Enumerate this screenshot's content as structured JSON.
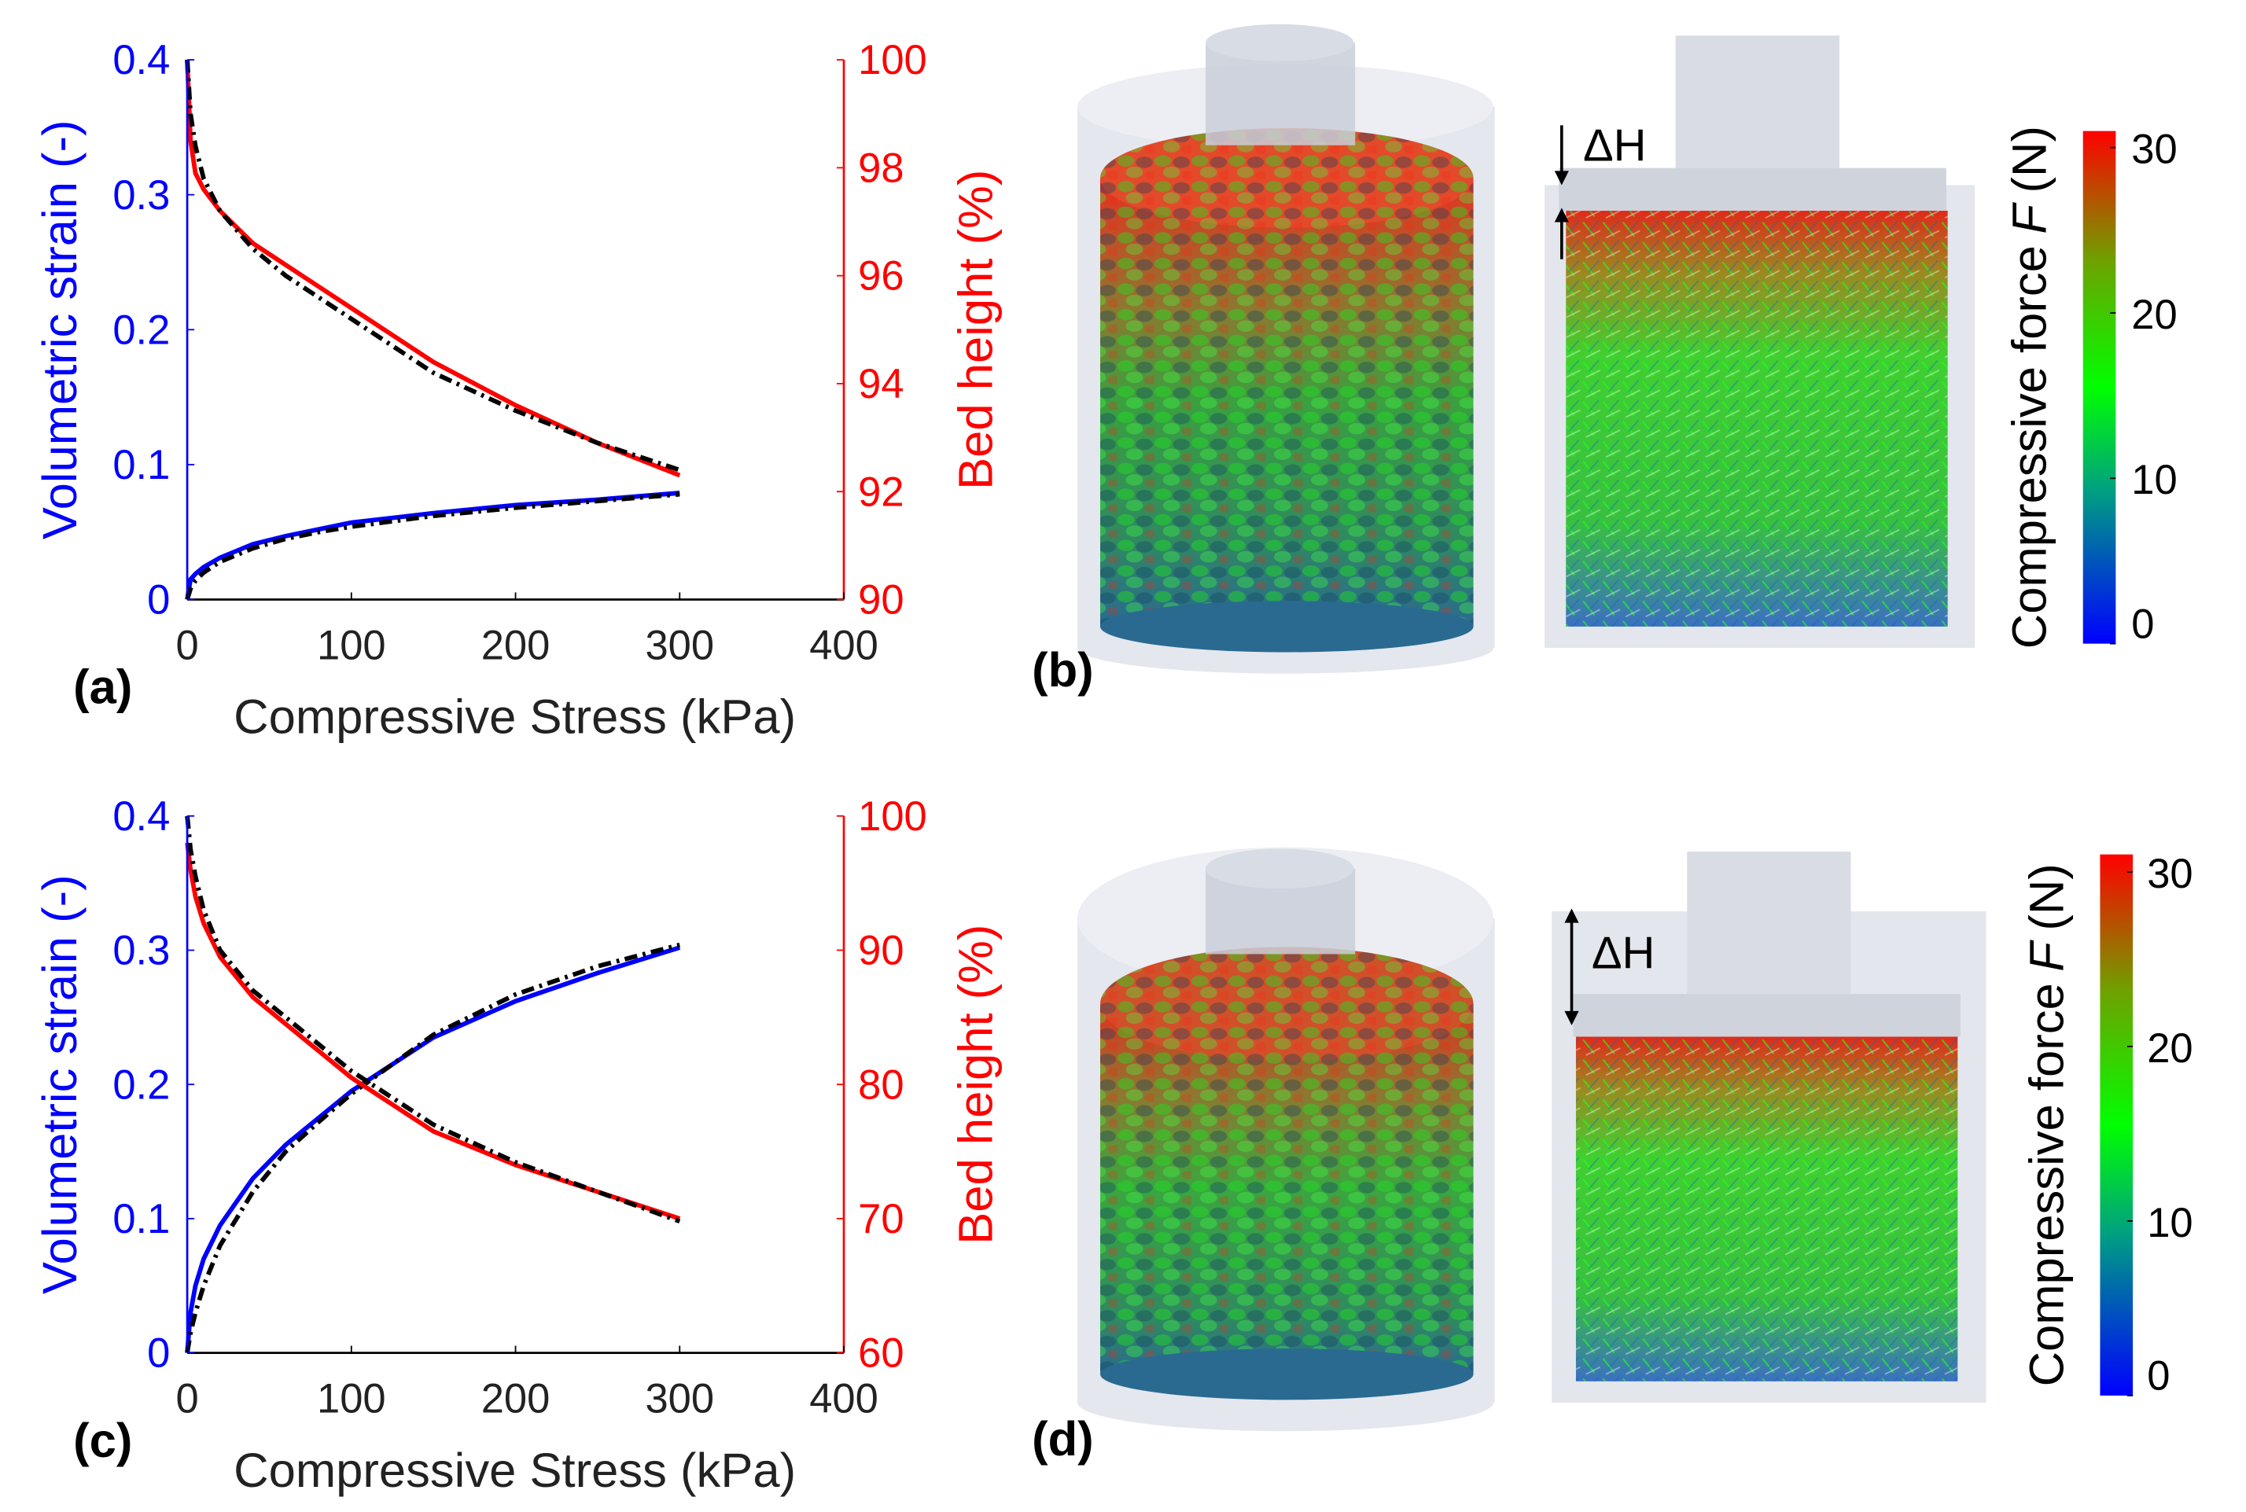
{
  "chart_data": [
    {
      "type": "line",
      "panel_label": "(a)",
      "xlabel": "Compressive Stress (kPa)",
      "ylabel": "Volumetric strain (-)",
      "y2label": "Bed height (%)",
      "ylabel_color": "#0000ff",
      "y2label_color": "#ff0000",
      "x": [
        0,
        2,
        5,
        10,
        20,
        40,
        60,
        80,
        100,
        150,
        200,
        250,
        300
      ],
      "xlim": [
        0,
        400
      ],
      "xticks": [
        0,
        100,
        200,
        300,
        400
      ],
      "ylim": [
        0,
        0.4
      ],
      "yticks": [
        0,
        0.1,
        0.2,
        0.3,
        0.4
      ],
      "y2lim": [
        90,
        100
      ],
      "y2ticks": [
        90,
        92,
        94,
        96,
        98,
        100
      ],
      "series": [
        {
          "color": "#0000ff",
          "dash": "solid",
          "axis": "y",
          "values": [
            0,
            0.015,
            0.019,
            0.024,
            0.031,
            0.041,
            0.047,
            0.052,
            0.057,
            0.064,
            0.07,
            0.074,
            0.079
          ]
        },
        {
          "color": "#000000",
          "dash": "dashdot",
          "axis": "y",
          "values": [
            0,
            0.008,
            0.014,
            0.02,
            0.028,
            0.038,
            0.045,
            0.05,
            0.054,
            0.062,
            0.068,
            0.073,
            0.078
          ]
        },
        {
          "color": "#ff0000",
          "dash": "solid",
          "axis": "y2",
          "values": [
            100,
            98.5,
            97.9,
            97.6,
            97.2,
            96.6,
            96.2,
            95.8,
            95.4,
            94.4,
            93.6,
            92.9,
            92.3
          ]
        },
        {
          "color": "#000000",
          "dash": "dashdot",
          "axis": "y2",
          "values": [
            100,
            99,
            98.4,
            97.8,
            97.2,
            96.5,
            96,
            95.6,
            95.2,
            94.2,
            93.5,
            92.9,
            92.4
          ]
        }
      ]
    },
    {
      "type": "line",
      "panel_label": "(c)",
      "xlabel": "Compressive Stress (kPa)",
      "ylabel": "Volumetric strain (-)",
      "y2label": "Bed height (%)",
      "ylabel_color": "#0000ff",
      "y2label_color": "#ff0000",
      "x": [
        0,
        2,
        5,
        10,
        20,
        40,
        60,
        80,
        100,
        150,
        200,
        250,
        300
      ],
      "xlim": [
        0,
        400
      ],
      "xticks": [
        0,
        100,
        200,
        300,
        400
      ],
      "ylim": [
        0,
        0.4
      ],
      "yticks": [
        0,
        0.1,
        0.2,
        0.3,
        0.4
      ],
      "y2lim": [
        60,
        100
      ],
      "y2ticks": [
        60,
        70,
        80,
        90,
        100
      ],
      "series": [
        {
          "color": "#0000ff",
          "dash": "solid",
          "axis": "y",
          "values": [
            0,
            0.03,
            0.05,
            0.07,
            0.095,
            0.13,
            0.155,
            0.175,
            0.195,
            0.235,
            0.262,
            0.283,
            0.302
          ]
        },
        {
          "color": "#000000",
          "dash": "dashdot",
          "axis": "y",
          "values": [
            0,
            0.015,
            0.03,
            0.05,
            0.08,
            0.12,
            0.15,
            0.172,
            0.193,
            0.237,
            0.267,
            0.288,
            0.304
          ]
        },
        {
          "color": "#ff0000",
          "dash": "solid",
          "axis": "y2",
          "values": [
            98,
            96,
            94,
            92,
            89.5,
            86.5,
            84.5,
            82.5,
            80.5,
            76.5,
            74,
            72,
            70
          ]
        },
        {
          "color": "#000000",
          "dash": "dashdot",
          "axis": "y2",
          "values": [
            100,
            97.5,
            95.5,
            93,
            90,
            87,
            85,
            83,
            81,
            77,
            74.2,
            72,
            69.8
          ]
        }
      ]
    }
  ],
  "renders": [
    {
      "panel_label": "(b)",
      "delta_label": "ΔH",
      "colorbar": {
        "label_parts": [
          "Compressive force",
          "F",
          "(N)"
        ],
        "lim": [
          0,
          31
        ],
        "ticks": [
          0,
          10,
          20,
          30
        ]
      }
    },
    {
      "panel_label": "(d)",
      "delta_label": "ΔH",
      "colorbar": {
        "label_parts": [
          "Compressive force",
          "F",
          "(N)"
        ],
        "lim": [
          0,
          31
        ],
        "ticks": [
          0,
          10,
          20,
          30
        ]
      }
    }
  ]
}
